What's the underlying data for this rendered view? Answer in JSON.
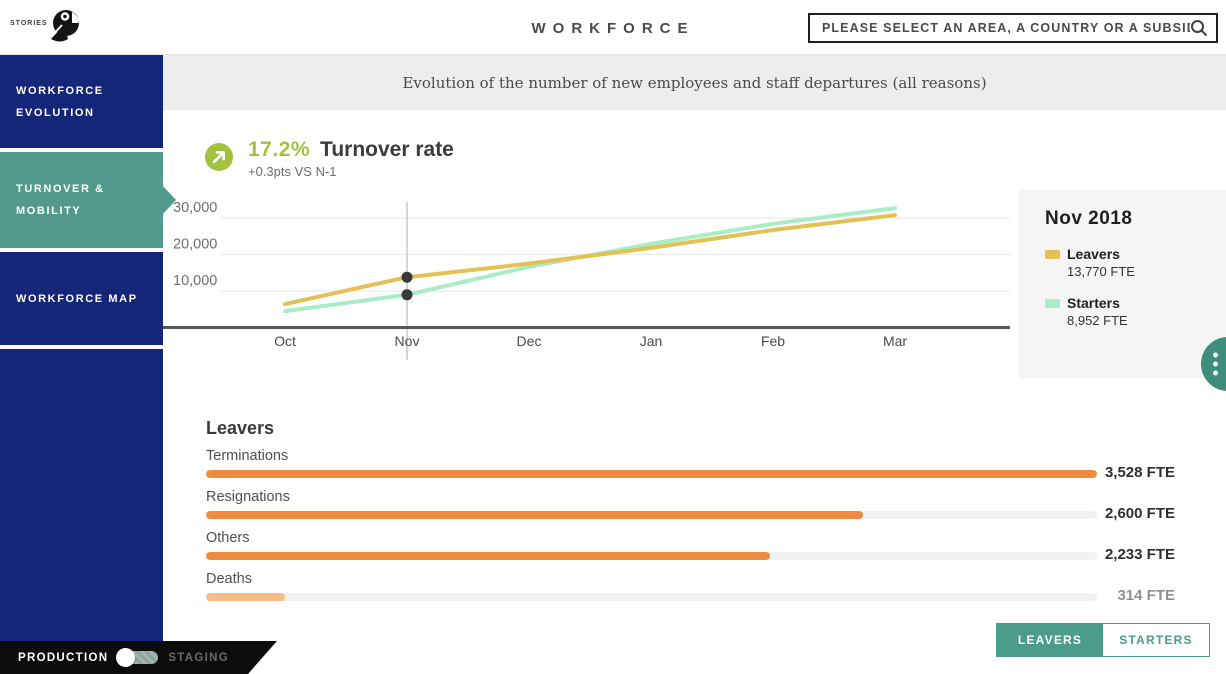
{
  "header": {
    "menu": {
      "label": "STORIES"
    },
    "logo": "toucan-logo",
    "title": "WORKFORCE",
    "search": {
      "placeholder": "PLEASE SELECT AN AREA, A COUNTRY OR A SUBSIDIARY"
    }
  },
  "sidebar": {
    "items": [
      {
        "label": "WORKFORCE EVOLUTION"
      },
      {
        "label": "TURNOVER & MOBILITY"
      },
      {
        "label": "WORKFORCE MAP"
      }
    ],
    "active_item": "TURNOVER & MOBILITY"
  },
  "subtitle": "Evolution of the number of new employees and staff departures (all reasons)",
  "kpi": {
    "value": "17.2%",
    "label": "Turnover rate",
    "delta": "+0.3pts VS N-1"
  },
  "chart_data": {
    "type": "line",
    "x": [
      "Oct",
      "Nov",
      "Dec",
      "Jan",
      "Feb",
      "Mar"
    ],
    "series": [
      {
        "name": "Leavers",
        "color": "#e3c155",
        "values": [
          6400,
          13770,
          17500,
          21800,
          26700,
          30800
        ]
      },
      {
        "name": "Starters",
        "color": "#a8edc5",
        "values": [
          4500,
          8952,
          16600,
          22900,
          28400,
          32700
        ]
      }
    ],
    "ylim": [
      0,
      37000
    ],
    "yticks": [
      10000,
      20000,
      30000
    ],
    "ytick_labels": [
      "10,000",
      "20,000",
      "30,000"
    ],
    "grid": true,
    "marker_month": "Nov",
    "marker_values": {
      "Leavers": 13770,
      "Starters": 8952
    },
    "legend_position": "right"
  },
  "tooltip_panel": {
    "title": "Nov 2018",
    "items": [
      {
        "label": "Leavers",
        "value": "13,770 FTE",
        "color": "#e3c155"
      },
      {
        "label": "Starters",
        "value": "8,952 FTE",
        "color": "#a8edc5"
      }
    ]
  },
  "breakdown": {
    "title": "Leavers",
    "max": 3528,
    "rows": [
      {
        "label": "Terminations",
        "value": 3528,
        "display": "3,528 FTE",
        "bar_color": "#ef8b3f",
        "value_color": "#2e2e2e"
      },
      {
        "label": "Resignations",
        "value": 2600,
        "display": "2,600 FTE",
        "bar_color": "#ef8b3f",
        "value_color": "#2e2e2e"
      },
      {
        "label": "Others",
        "value": 2233,
        "display": "2,233 FTE",
        "bar_color": "#ef8b3f",
        "value_color": "#2e2e2e"
      },
      {
        "label": "Deaths",
        "value": 314,
        "display": "314 FTE",
        "bar_color": "#f6bd86",
        "value_color": "#8f8f8f"
      }
    ]
  },
  "view_toggle": {
    "options": [
      {
        "label": "LEAVERS",
        "selected": true
      },
      {
        "label": "STARTERS",
        "selected": false
      }
    ]
  },
  "env_switch": {
    "production_label": "PRODUCTION",
    "staging_label": "STAGING",
    "selected": "PRODUCTION"
  },
  "colors": {
    "navy": "#152577",
    "teal": "#549a8c",
    "accent_olive": "#a2c13c",
    "orange": "#ef8b3f",
    "fab_teal": "#3f8e7d"
  }
}
